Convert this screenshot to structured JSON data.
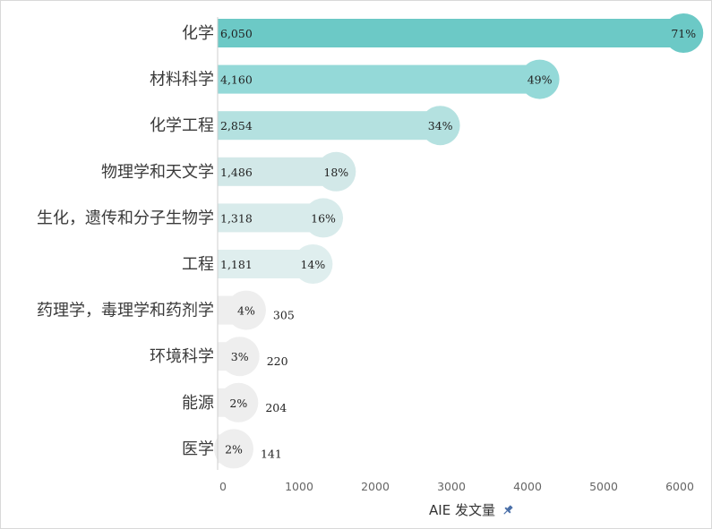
{
  "chart_data": {
    "type": "bar",
    "orientation": "horizontal",
    "categories": [
      "化学",
      "材料科学",
      "化学工程",
      "物理学和天文学",
      "生化，遗传和分子生物学",
      "工程",
      "药理学，毒理学和药剂学",
      "环境科学",
      "能源",
      "医学"
    ],
    "values": [
      6050,
      4160,
      2854,
      1486,
      1318,
      1181,
      305,
      220,
      204,
      141
    ],
    "value_labels": [
      "6,050",
      "4,160",
      "2,854",
      "1,486",
      "1,318",
      "1,181",
      "305",
      "220",
      "204",
      "141"
    ],
    "percent_labels": [
      "71%",
      "49%",
      "34%",
      "18%",
      "16%",
      "14%",
      "4%",
      "3%",
      "2%",
      "2%"
    ],
    "colors": [
      "#6cc9c6",
      "#94d9d8",
      "#b4e1e0",
      "#d2e8e8",
      "#d8ebeb",
      "#dfeeee",
      "#eeeeee",
      "#eeeeee",
      "#eeeeee",
      "#eeeeee"
    ],
    "xlabel": "AIE 发文量",
    "xlabel_icon": "pin-icon",
    "x_ticks": [
      "0",
      "1000",
      "2000",
      "3000",
      "4000",
      "5000",
      "6000"
    ],
    "xlim": [
      0,
      6000
    ],
    "grid": false
  }
}
